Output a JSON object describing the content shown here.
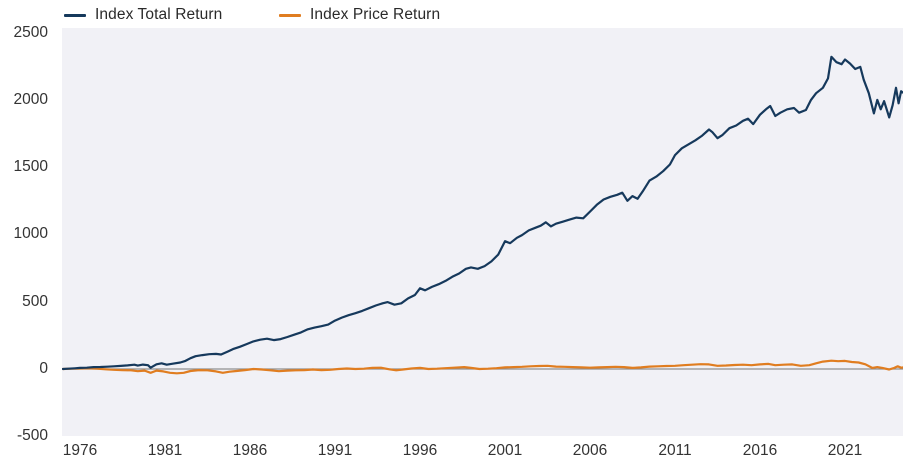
{
  "legend": {
    "total_return_label": "Index Total Return",
    "price_return_label": "Index Price Return"
  },
  "colors": {
    "total_return": "#16395c",
    "price_return": "#e07d20",
    "zero_line": "#8f8f8f",
    "plot_background": "#f1f1f6",
    "axis_text": "#333333"
  },
  "chart_data": {
    "type": "line",
    "title": "",
    "xlabel": "",
    "ylabel": "",
    "x_tick_labels": [
      "1976",
      "1981",
      "1986",
      "1991",
      "1996",
      "2001",
      "2006",
      "2011",
      "2016",
      "2021"
    ],
    "x_tick_years": [
      1976,
      1981,
      1986,
      1991,
      1996,
      2001,
      2006,
      2011,
      2016,
      2021
    ],
    "y_tick_labels": [
      "2500",
      "2000",
      "1500",
      "1000",
      "500",
      "0",
      "-500"
    ],
    "y_tick_values": [
      2500,
      2000,
      1500,
      1000,
      500,
      0,
      -500
    ],
    "ylim": [
      -500,
      2500
    ],
    "xlim": [
      1974.9,
      2024.6
    ],
    "grid": false,
    "zero_line": true,
    "legend_position": "top-left",
    "series": [
      {
        "name": "Index Total Return",
        "color": "#16395c",
        "points": [
          [
            1975.0,
            0
          ],
          [
            1975.3,
            2
          ],
          [
            1975.7,
            5
          ],
          [
            1976.0,
            8
          ],
          [
            1976.4,
            10
          ],
          [
            1976.8,
            14
          ],
          [
            1977.2,
            15
          ],
          [
            1977.6,
            17
          ],
          [
            1978.0,
            20
          ],
          [
            1978.4,
            23
          ],
          [
            1978.8,
            27
          ],
          [
            1979.2,
            32
          ],
          [
            1979.4,
            25
          ],
          [
            1979.7,
            33
          ],
          [
            1980.0,
            28
          ],
          [
            1980.15,
            10
          ],
          [
            1980.5,
            35
          ],
          [
            1980.8,
            42
          ],
          [
            1981.1,
            32
          ],
          [
            1981.5,
            40
          ],
          [
            1981.9,
            48
          ],
          [
            1982.2,
            60
          ],
          [
            1982.5,
            80
          ],
          [
            1982.8,
            95
          ],
          [
            1983.2,
            103
          ],
          [
            1983.6,
            110
          ],
          [
            1984.0,
            112
          ],
          [
            1984.3,
            108
          ],
          [
            1984.7,
            130
          ],
          [
            1985.0,
            148
          ],
          [
            1985.4,
            165
          ],
          [
            1985.8,
            185
          ],
          [
            1986.2,
            205
          ],
          [
            1986.6,
            218
          ],
          [
            1987.0,
            225
          ],
          [
            1987.4,
            215
          ],
          [
            1987.8,
            222
          ],
          [
            1988.2,
            238
          ],
          [
            1988.6,
            255
          ],
          [
            1989.0,
            272
          ],
          [
            1989.4,
            295
          ],
          [
            1989.8,
            308
          ],
          [
            1990.2,
            318
          ],
          [
            1990.6,
            330
          ],
          [
            1991.0,
            360
          ],
          [
            1991.4,
            382
          ],
          [
            1991.8,
            400
          ],
          [
            1992.2,
            415
          ],
          [
            1992.6,
            432
          ],
          [
            1993.0,
            452
          ],
          [
            1993.4,
            472
          ],
          [
            1993.8,
            488
          ],
          [
            1994.1,
            497
          ],
          [
            1994.5,
            478
          ],
          [
            1994.9,
            488
          ],
          [
            1995.3,
            525
          ],
          [
            1995.7,
            550
          ],
          [
            1996.0,
            600
          ],
          [
            1996.3,
            585
          ],
          [
            1996.7,
            610
          ],
          [
            1997.1,
            630
          ],
          [
            1997.5,
            655
          ],
          [
            1997.9,
            685
          ],
          [
            1998.3,
            710
          ],
          [
            1998.7,
            745
          ],
          [
            1999.0,
            755
          ],
          [
            1999.4,
            745
          ],
          [
            1999.8,
            765
          ],
          [
            2000.2,
            800
          ],
          [
            2000.6,
            850
          ],
          [
            2001.0,
            950
          ],
          [
            2001.3,
            935
          ],
          [
            2001.7,
            975
          ],
          [
            2002.0,
            995
          ],
          [
            2002.4,
            1030
          ],
          [
            2002.8,
            1050
          ],
          [
            2003.1,
            1065
          ],
          [
            2003.4,
            1090
          ],
          [
            2003.7,
            1060
          ],
          [
            2004.0,
            1080
          ],
          [
            2004.4,
            1095
          ],
          [
            2004.8,
            1110
          ],
          [
            2005.2,
            1125
          ],
          [
            2005.6,
            1120
          ],
          [
            2006.0,
            1170
          ],
          [
            2006.4,
            1220
          ],
          [
            2006.8,
            1260
          ],
          [
            2007.2,
            1280
          ],
          [
            2007.6,
            1295
          ],
          [
            2007.9,
            1310
          ],
          [
            2008.2,
            1250
          ],
          [
            2008.5,
            1285
          ],
          [
            2008.8,
            1265
          ],
          [
            2009.1,
            1320
          ],
          [
            2009.5,
            1400
          ],
          [
            2009.9,
            1430
          ],
          [
            2010.3,
            1470
          ],
          [
            2010.7,
            1520
          ],
          [
            2011.0,
            1590
          ],
          [
            2011.4,
            1640
          ],
          [
            2011.8,
            1670
          ],
          [
            2012.2,
            1700
          ],
          [
            2012.6,
            1735
          ],
          [
            2013.0,
            1780
          ],
          [
            2013.2,
            1760
          ],
          [
            2013.5,
            1715
          ],
          [
            2013.8,
            1740
          ],
          [
            2014.2,
            1790
          ],
          [
            2014.6,
            1810
          ],
          [
            2015.0,
            1845
          ],
          [
            2015.3,
            1860
          ],
          [
            2015.6,
            1820
          ],
          [
            2016.0,
            1890
          ],
          [
            2016.4,
            1935
          ],
          [
            2016.6,
            1955
          ],
          [
            2016.9,
            1880
          ],
          [
            2017.2,
            1905
          ],
          [
            2017.6,
            1930
          ],
          [
            2018.0,
            1940
          ],
          [
            2018.3,
            1905
          ],
          [
            2018.7,
            1925
          ],
          [
            2019.0,
            2000
          ],
          [
            2019.3,
            2050
          ],
          [
            2019.7,
            2090
          ],
          [
            2020.0,
            2160
          ],
          [
            2020.2,
            2320
          ],
          [
            2020.5,
            2280
          ],
          [
            2020.8,
            2265
          ],
          [
            2021.0,
            2300
          ],
          [
            2021.3,
            2270
          ],
          [
            2021.6,
            2230
          ],
          [
            2021.9,
            2245
          ],
          [
            2022.1,
            2150
          ],
          [
            2022.4,
            2050
          ],
          [
            2022.7,
            1900
          ],
          [
            2022.9,
            2000
          ],
          [
            2023.1,
            1930
          ],
          [
            2023.3,
            1990
          ],
          [
            2023.6,
            1870
          ],
          [
            2023.8,
            1960
          ],
          [
            2024.0,
            2090
          ],
          [
            2024.15,
            1975
          ],
          [
            2024.3,
            2065
          ],
          [
            2024.4,
            2055
          ]
        ]
      },
      {
        "name": "Index Price Return",
        "color": "#e07d20",
        "points": [
          [
            1975.0,
            0
          ],
          [
            1975.5,
            2
          ],
          [
            1976.0,
            4
          ],
          [
            1976.5,
            5
          ],
          [
            1977.0,
            2
          ],
          [
            1977.5,
            -2
          ],
          [
            1978.0,
            -6
          ],
          [
            1978.5,
            -9
          ],
          [
            1979.0,
            -10
          ],
          [
            1979.4,
            -16
          ],
          [
            1979.8,
            -12
          ],
          [
            1980.15,
            -28
          ],
          [
            1980.5,
            -12
          ],
          [
            1980.9,
            -18
          ],
          [
            1981.3,
            -28
          ],
          [
            1981.7,
            -32
          ],
          [
            1982.1,
            -28
          ],
          [
            1982.5,
            -15
          ],
          [
            1983.0,
            -8
          ],
          [
            1983.5,
            -10
          ],
          [
            1984.0,
            -18
          ],
          [
            1984.4,
            -28
          ],
          [
            1984.8,
            -20
          ],
          [
            1985.2,
            -15
          ],
          [
            1985.7,
            -8
          ],
          [
            1986.2,
            0
          ],
          [
            1986.7,
            -4
          ],
          [
            1987.2,
            -10
          ],
          [
            1987.7,
            -16
          ],
          [
            1988.2,
            -12
          ],
          [
            1988.7,
            -10
          ],
          [
            1989.2,
            -8
          ],
          [
            1989.7,
            -4
          ],
          [
            1990.2,
            -8
          ],
          [
            1990.7,
            -6
          ],
          [
            1991.2,
            0
          ],
          [
            1991.7,
            4
          ],
          [
            1992.2,
            0
          ],
          [
            1992.7,
            2
          ],
          [
            1993.2,
            8
          ],
          [
            1993.7,
            10
          ],
          [
            1994.2,
            -2
          ],
          [
            1994.6,
            -10
          ],
          [
            1995.0,
            -4
          ],
          [
            1995.5,
            4
          ],
          [
            1996.0,
            8
          ],
          [
            1996.5,
            0
          ],
          [
            1997.0,
            2
          ],
          [
            1997.5,
            6
          ],
          [
            1998.0,
            10
          ],
          [
            1998.6,
            14
          ],
          [
            1999.0,
            8
          ],
          [
            1999.5,
            0
          ],
          [
            2000.0,
            2
          ],
          [
            2000.5,
            6
          ],
          [
            2001.0,
            12
          ],
          [
            2001.5,
            14
          ],
          [
            2002.0,
            16
          ],
          [
            2002.5,
            20
          ],
          [
            2003.0,
            22
          ],
          [
            2003.5,
            24
          ],
          [
            2004.0,
            18
          ],
          [
            2004.5,
            16
          ],
          [
            2005.0,
            14
          ],
          [
            2005.5,
            12
          ],
          [
            2006.0,
            10
          ],
          [
            2006.5,
            12
          ],
          [
            2007.0,
            14
          ],
          [
            2007.5,
            16
          ],
          [
            2008.0,
            14
          ],
          [
            2008.5,
            8
          ],
          [
            2009.0,
            12
          ],
          [
            2009.5,
            18
          ],
          [
            2010.0,
            20
          ],
          [
            2010.5,
            22
          ],
          [
            2011.0,
            24
          ],
          [
            2011.5,
            28
          ],
          [
            2012.0,
            32
          ],
          [
            2012.5,
            36
          ],
          [
            2013.0,
            34
          ],
          [
            2013.5,
            24
          ],
          [
            2014.0,
            26
          ],
          [
            2014.5,
            30
          ],
          [
            2015.0,
            32
          ],
          [
            2015.5,
            28
          ],
          [
            2016.0,
            34
          ],
          [
            2016.5,
            38
          ],
          [
            2016.9,
            28
          ],
          [
            2017.4,
            32
          ],
          [
            2017.9,
            34
          ],
          [
            2018.4,
            24
          ],
          [
            2018.9,
            28
          ],
          [
            2019.3,
            42
          ],
          [
            2019.7,
            55
          ],
          [
            2020.2,
            62
          ],
          [
            2020.6,
            58
          ],
          [
            2021.0,
            60
          ],
          [
            2021.4,
            52
          ],
          [
            2021.8,
            48
          ],
          [
            2022.2,
            35
          ],
          [
            2022.6,
            8
          ],
          [
            2022.9,
            14
          ],
          [
            2023.2,
            8
          ],
          [
            2023.6,
            -4
          ],
          [
            2023.9,
            8
          ],
          [
            2024.1,
            20
          ],
          [
            2024.3,
            10
          ],
          [
            2024.4,
            12
          ]
        ]
      }
    ]
  }
}
